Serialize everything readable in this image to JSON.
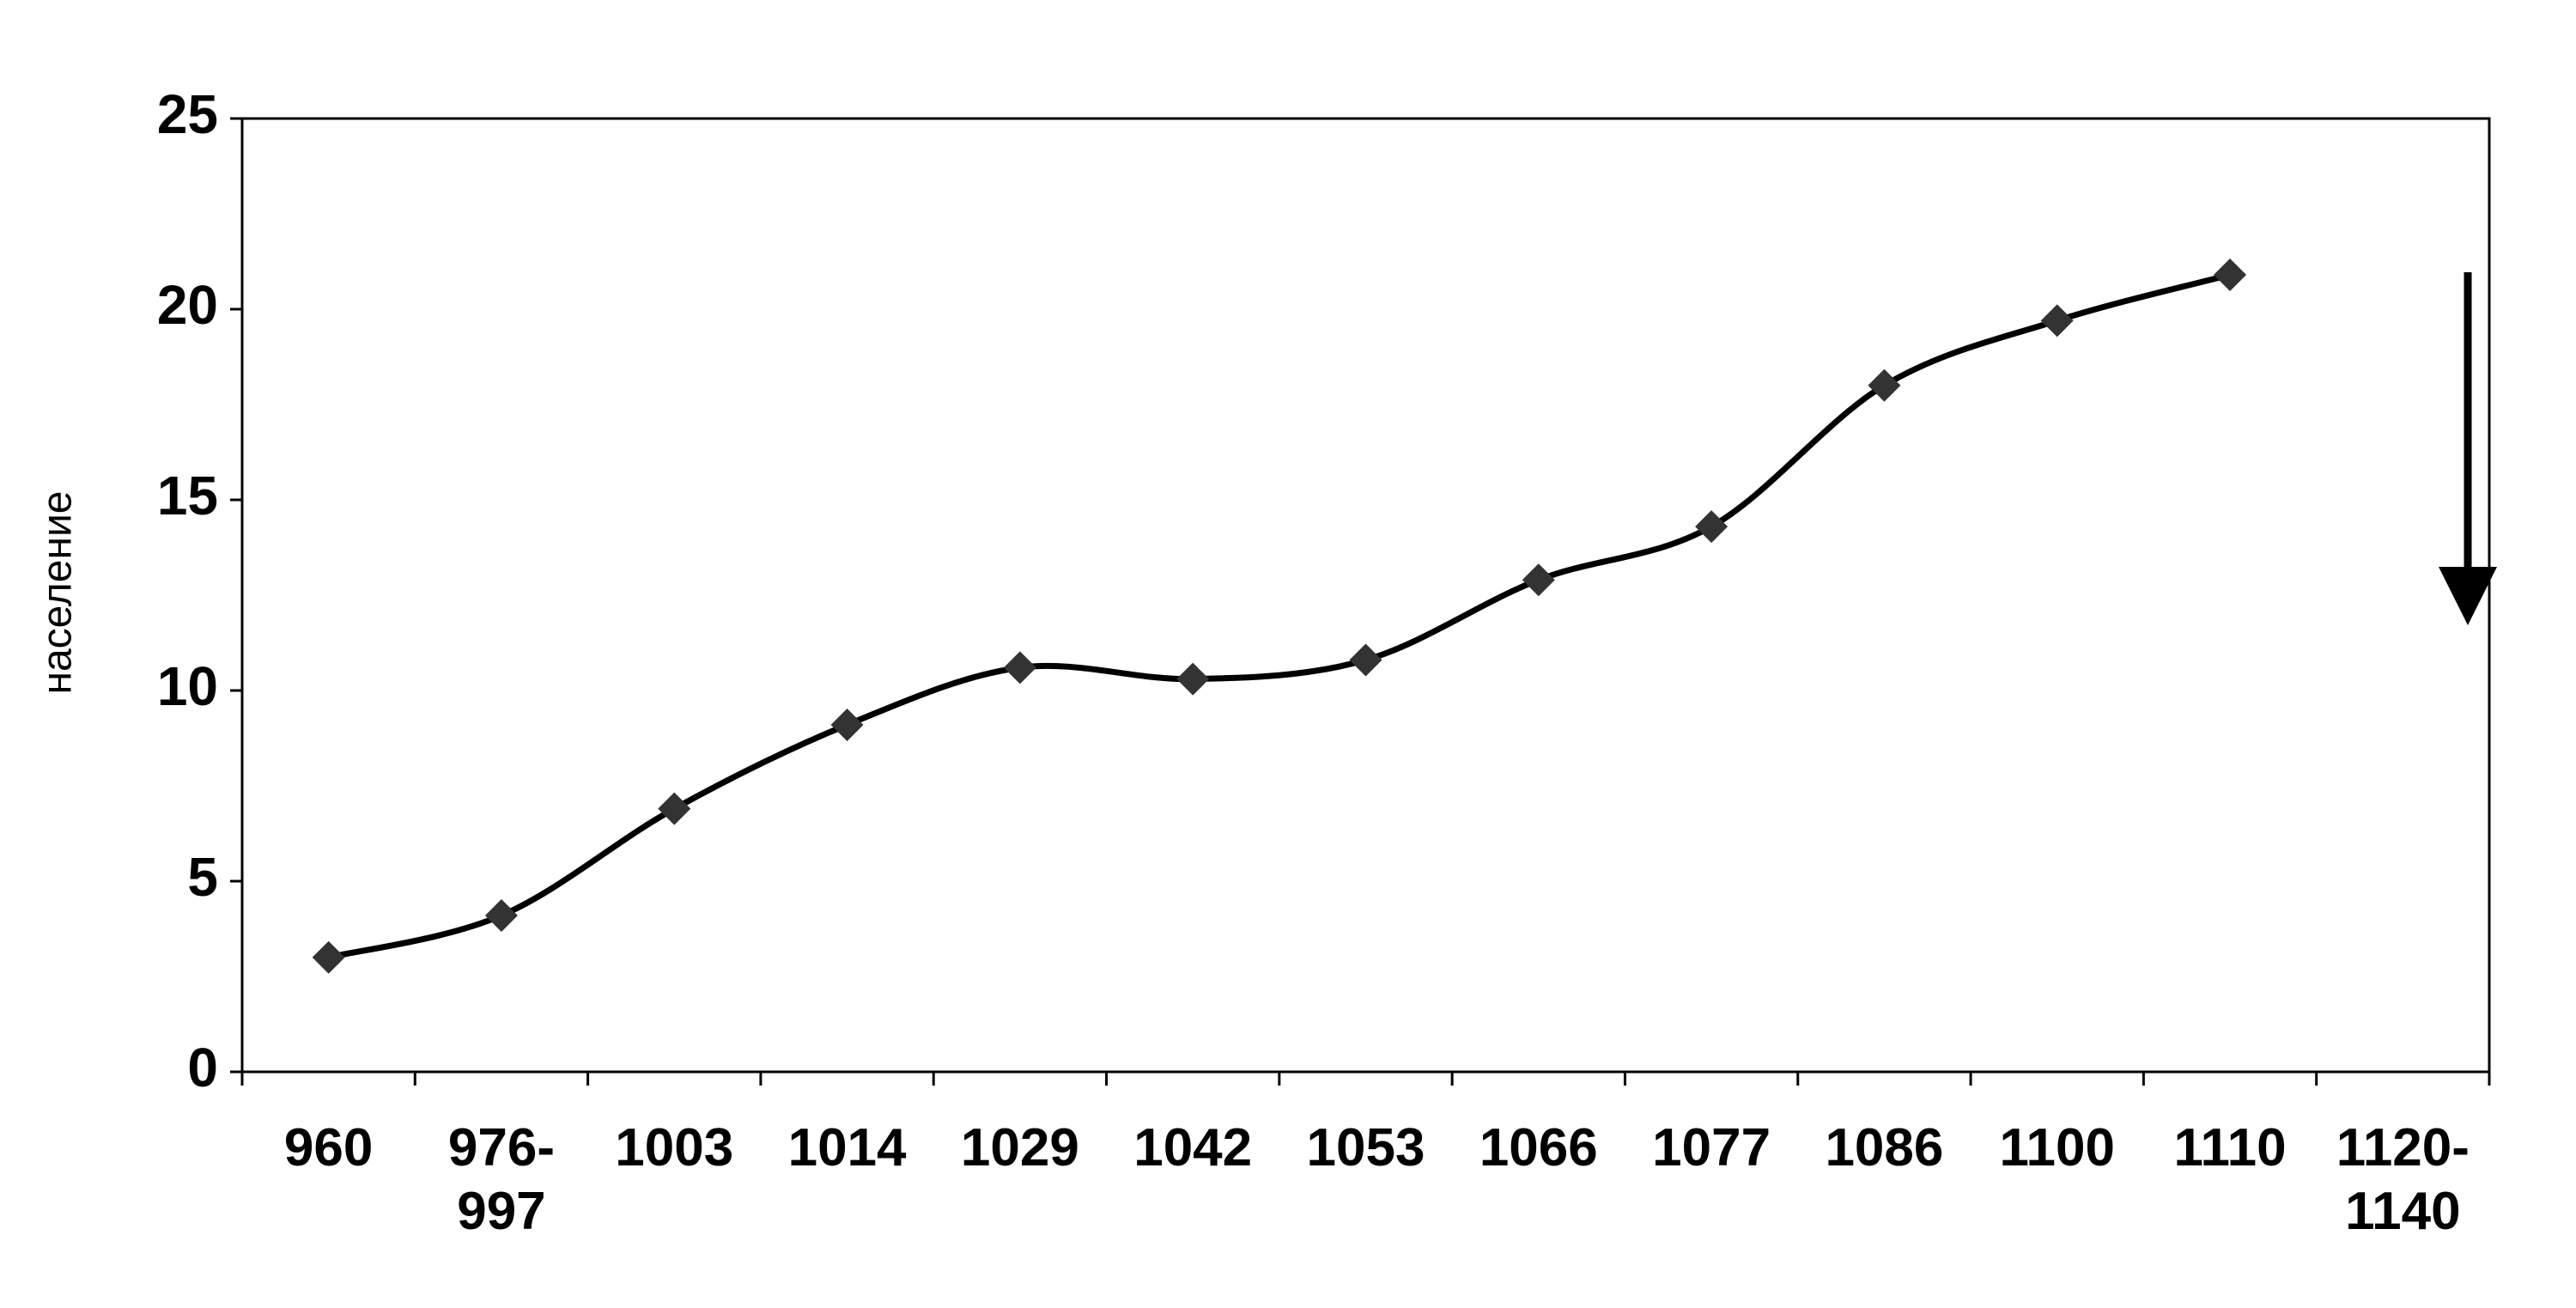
{
  "chart_data": {
    "type": "scatter",
    "y_label": "население",
    "categories": [
      "960",
      "976-997",
      "1003",
      "1014",
      "1029",
      "1042",
      "1053",
      "1066",
      "1077",
      "1086",
      "1100",
      "1110",
      "1120-1140"
    ],
    "series": [
      {
        "color": "#333333",
        "values": [
          3.0,
          4.1,
          6.9,
          9.1,
          10.6,
          10.3,
          10.8,
          12.9,
          14.3,
          18.0,
          19.7,
          20.9,
          null
        ]
      }
    ],
    "ylim": [
      0,
      25
    ],
    "yticks": [
      0,
      5,
      10,
      15,
      20,
      25
    ],
    "trend_line": true
  }
}
